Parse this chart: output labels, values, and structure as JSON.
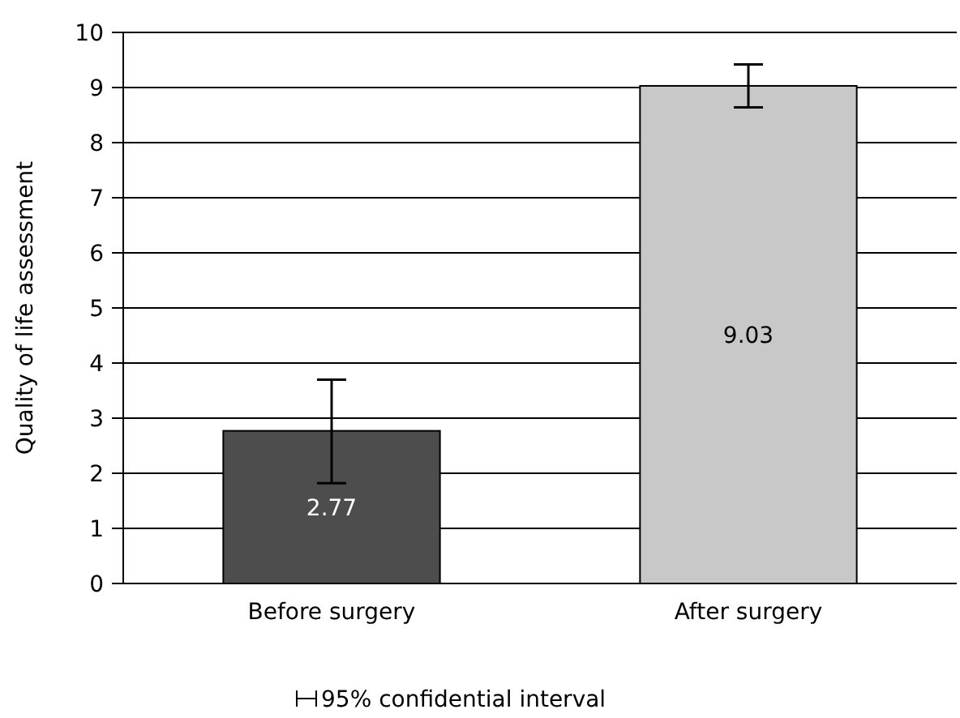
{
  "chart_data": {
    "type": "bar",
    "ylabel": "Quality of life assessment",
    "categories": [
      "Before surgery",
      "After surgery"
    ],
    "values": [
      2.77,
      9.03
    ],
    "colors": [
      "#4d4d4d",
      "#c8c8c8"
    ],
    "errors": [
      [
        1.82,
        3.7
      ],
      [
        8.64,
        9.42
      ]
    ],
    "data_labels": true,
    "ylim": [
      0,
      10
    ],
    "yticks": [
      0,
      1,
      2,
      3,
      4,
      5,
      6,
      7,
      8,
      9,
      10
    ],
    "grid": "y",
    "annotations": [
      "95% confidential interval"
    ]
  }
}
